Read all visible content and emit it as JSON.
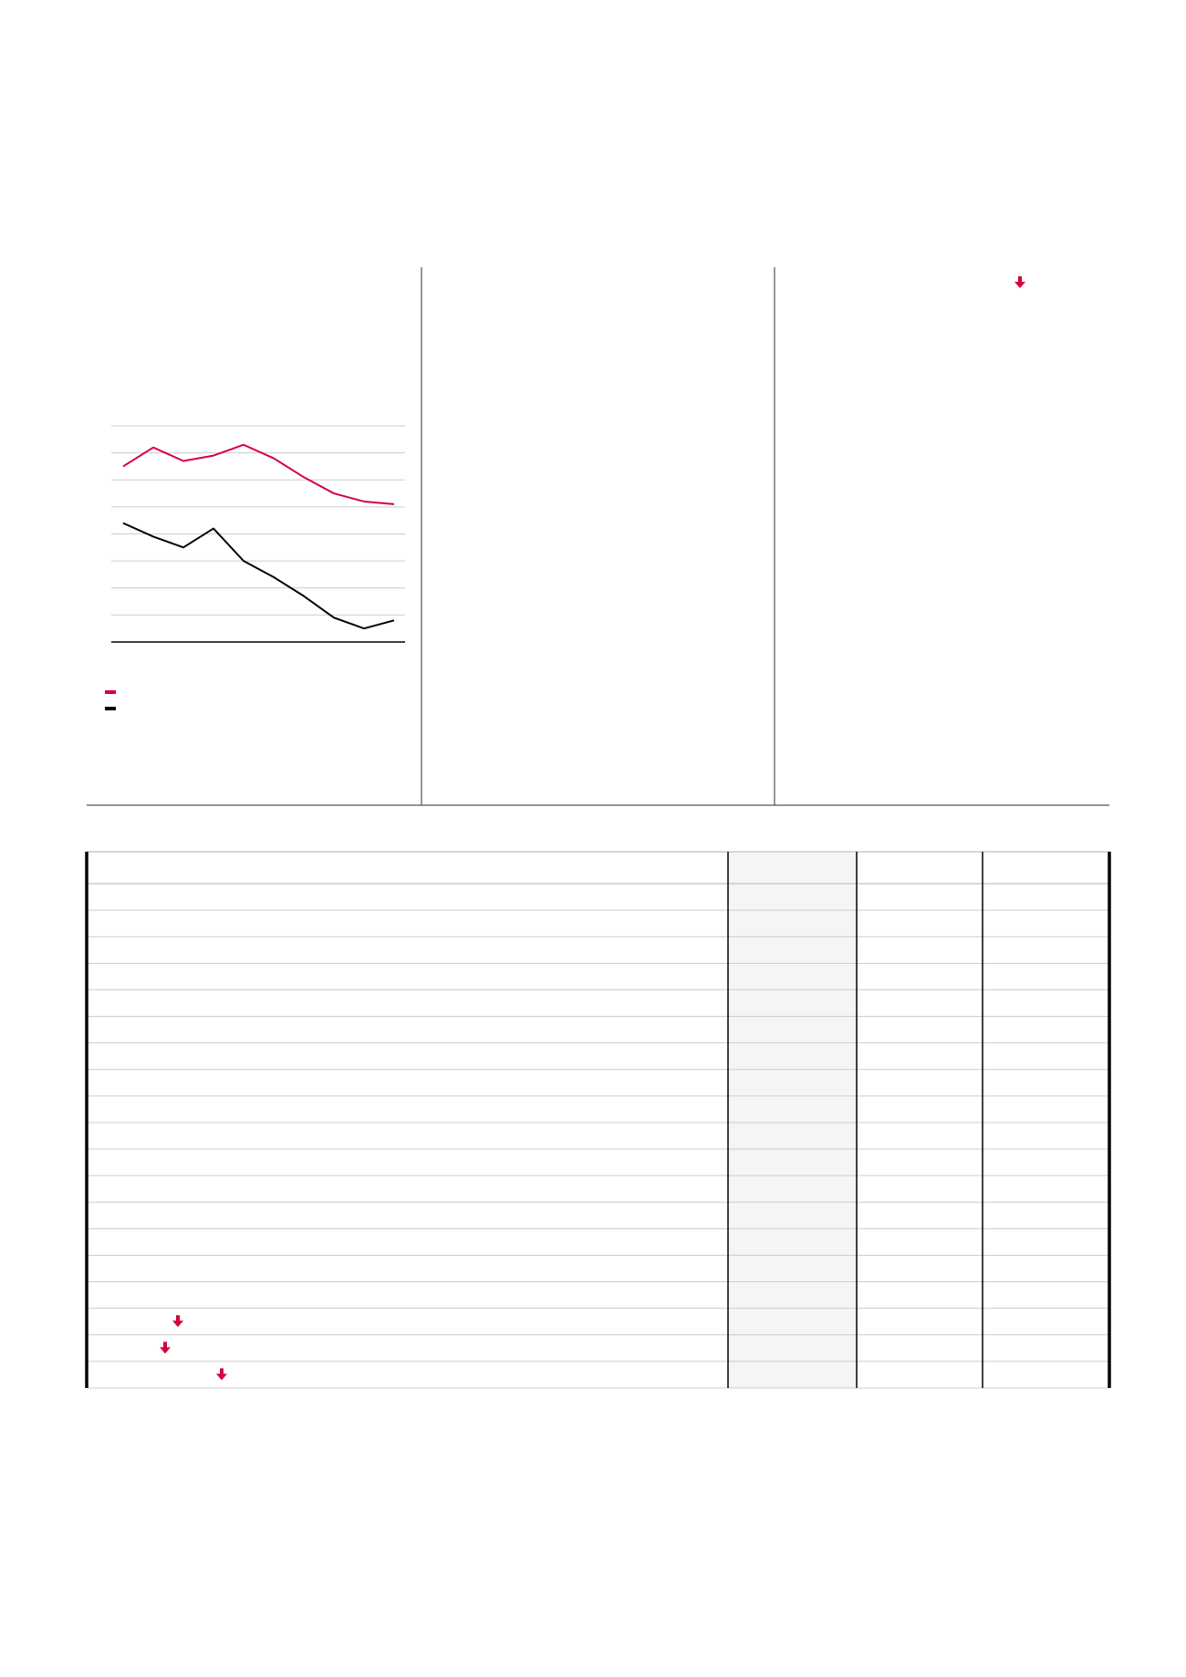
{
  "colors": {
    "accent": "#d6003f",
    "ink": "#000000",
    "grid": "#cccccc",
    "shaded_column": "#f5f5f5"
  },
  "icons": {
    "marker": "arrow-down-icon"
  },
  "chart_data": {
    "type": "line",
    "x": [
      1,
      2,
      3,
      4,
      5,
      6,
      7,
      8,
      9,
      10
    ],
    "ylim": [
      0,
      8
    ],
    "grid": true,
    "legend": "bottom-left",
    "series": [
      {
        "color": "#d6003f",
        "values": [
          6.5,
          7.2,
          6.7,
          6.9,
          7.3,
          6.8,
          6.1,
          5.5,
          5.2,
          5.1
        ]
      },
      {
        "color": "#000000",
        "values": [
          4.4,
          3.9,
          3.5,
          4.2,
          3.0,
          2.4,
          1.7,
          0.9,
          0.5,
          0.8
        ]
      }
    ]
  },
  "table": {
    "row_count": 19,
    "shaded_column": 1,
    "marker_rows": [
      16,
      17,
      18
    ]
  }
}
